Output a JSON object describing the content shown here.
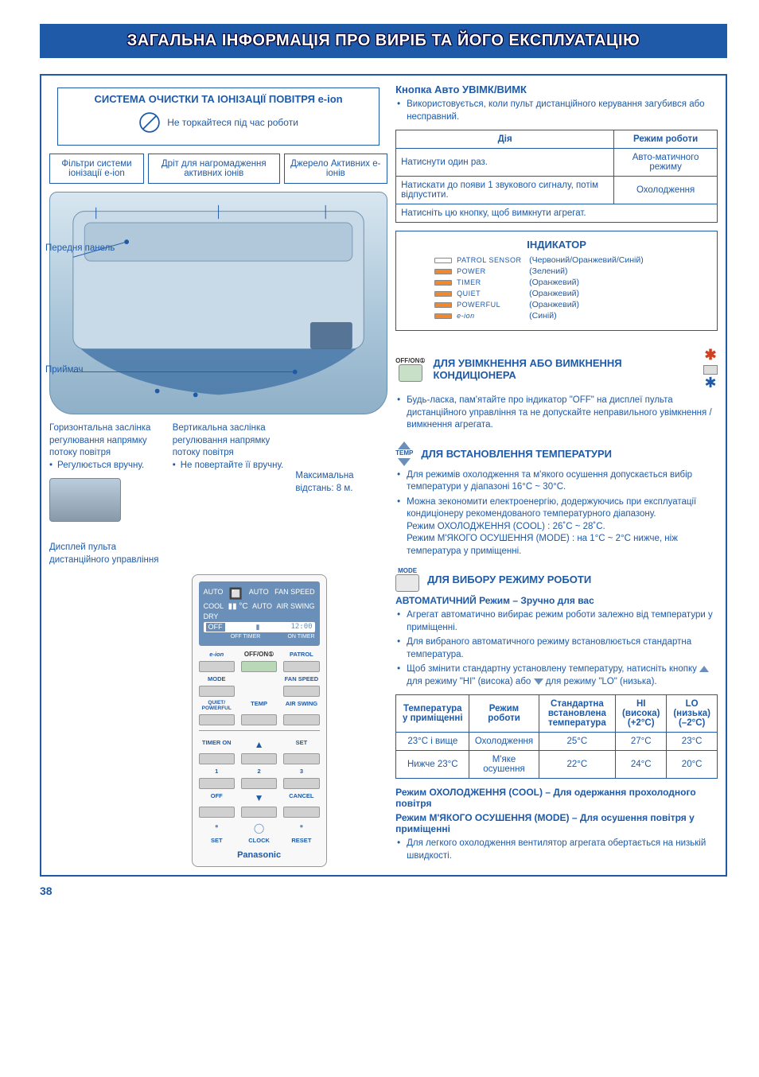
{
  "header": "ЗАГАЛЬНА ІНФОРМАЦІЯ ПРО ВИРІБ ТА ЙОГО ЕКСПЛУАТАЦІЮ",
  "pageNumber": "38",
  "system": {
    "title": "СИСТЕМА ОЧИСТКИ ТА ІОНІЗАЦІЇ ПОВІТРЯ e-ion",
    "noTouch": "Не торкайтеся під час роботи",
    "filters": {
      "f1": "Фільтри системи іонізації e-ion",
      "f2": "Дріт для нагромадження активних іонів",
      "f3": "Джерело Активних e-іонів"
    }
  },
  "labels": {
    "frontPanel": "Передня панель",
    "receiver": "Приймач",
    "horiz": "Горизонтальна заслінка регулювання напрямку потоку повітря",
    "horizNote": "Регулюється вручну.",
    "vert": "Вертикальна заслінка регулювання напрямку потоку повітря",
    "vertNote": "Не повертайте її вручну.",
    "maxDist": "Максимальна відстань: 8 м.",
    "remoteDisp": "Дисплей пульта дистанційного управління"
  },
  "autoBtn": {
    "title": "Кнопка Авто УВІМК/ВИМК",
    "desc": "Використовується, коли пульт дистанційного керування загубився або несправний.",
    "tbl": {
      "h1": "Дія",
      "h2": "Режим роботи",
      "r1c1": "Натиснути один раз.",
      "r1c2": "Авто-матичного режиму",
      "r2c1": "Натискати до появи 1 звукового сигналу, потім відпустити.",
      "r2c2": "Охолодження",
      "r3": "Натисніть цю кнопку, щоб вимкнути агрегат."
    }
  },
  "indicator": {
    "title": "ІНДИКАТОР",
    "rows": [
      {
        "name": "PATROL SENSOR",
        "color": "(Червоний/Оранжевий/Синій)",
        "led": "#ffffff"
      },
      {
        "name": "POWER",
        "color": "(Зелений)",
        "led": "#f08830"
      },
      {
        "name": "TIMER",
        "color": "(Оранжевий)",
        "led": "#f08830"
      },
      {
        "name": "QUIET",
        "color": "(Оранжевий)",
        "led": "#f08830"
      },
      {
        "name": "POWERFUL",
        "color": "(Оранжевий)",
        "led": "#f08830"
      },
      {
        "name": "e-ion",
        "color": "(Синій)",
        "led": "#f08830"
      }
    ]
  },
  "onoff": {
    "btnLabel": "OFF/ON①",
    "title": "ДЛЯ УВІМКНЕННЯ АБО ВИМКНЕННЯ КОНДИЦІОНЕРА",
    "note": "Будь-ласка, пам'ятайте про індикатор \"OFF\" на дисплеї пульта дистанційного управління та не допускайте неправильного увімкнення / вимкнення агрегата."
  },
  "temp": {
    "btnLabel": "TEMP",
    "title": "ДЛЯ ВСТАНОВЛЕННЯ ТЕМПЕРАТУРИ",
    "b1": "Для режимів охолодження та м'якого осушення допускається вибір температури у діапазоні 16°C ~ 30°C.",
    "b2": "Можна зекономити електроенергію, додержуючись при експлуатації кондиціонеру рекомендованого температурного діапазону.",
    "b2a": "Режим ОХОЛОДЖЕННЯ (COOL) : 26˚C ~ 28˚C.",
    "b2b": "Режим М'ЯКОГО ОСУШЕННЯ (MODE) : на 1°C ~ 2°C нижче, ніж температура у приміщенні."
  },
  "mode": {
    "btnLabel": "MODE",
    "title": "ДЛЯ ВИБОРУ РЕЖИМУ РОБОТИ",
    "autoTitle": "АВТОМАТИЧНИЙ Режим – Зручно для вас",
    "b1": "Агрегат автоматично вибирає режим роботи залежно від температури у приміщенні.",
    "b2": "Для вибраного автоматичного режиму встановлюється стандартна температура.",
    "b3pre": "Щоб змінити стандартну установлену температуру, натисніть кнопку",
    "b3mid": "для режиму \"HI\" (висока) або",
    "b3post": "для режиму \"LO\" (низька).",
    "tbl": {
      "h1": "Температура у приміщенні",
      "h2": "Режим роботи",
      "h3": "Стандартна встановлена температура",
      "h4": "HI (висока) (+2°C)",
      "h5": "LO (низька) (–2°C)",
      "r1": [
        "23°C і вище",
        "Охолодження",
        "25°C",
        "27°C",
        "23°C"
      ],
      "r2": [
        "Нижче 23°C",
        "М'яке осушення",
        "22°C",
        "24°C",
        "20°C"
      ]
    },
    "cool": "Режим ОХОЛОДЖЕННЯ (COOL) – Для одержання прохолодного повітря",
    "dry": "Режим М'ЯКОГО ОСУШЕННЯ (MODE) – Для осушення повітря у приміщенні",
    "dryNote": "Для легкого охолодження вентилятор агрегата обертається на низькій швидкості."
  },
  "remote": {
    "lcd": {
      "auto": "AUTO",
      "cool": "COOL",
      "dry": "DRY",
      "autofan": "AUTO",
      "fan": "FAN SPEED",
      "air": "AIR SWING",
      "autoair": "AUTO",
      "off": "OFF",
      "time": "12:00",
      "offt": "OFF TIMER",
      "ont": "ON TIMER"
    },
    "btns": {
      "eion": "e-ion",
      "offon": "OFF/ON①",
      "patrol": "PATROL",
      "mode": "MODE",
      "fanspeed": "FAN SPEED",
      "quiet": "QUIET/ POWERFUL",
      "temp": "TEMP",
      "airswing": "AIR SWING",
      "timeron": "TIMER ON",
      "set": "SET",
      "n1": "1",
      "n2": "2",
      "n3": "3",
      "off": "OFF",
      "cancel": "CANCEL",
      "setb": "SET",
      "clock": "CLOCK",
      "reset": "RESET",
      "brand": "Panasonic"
    }
  }
}
